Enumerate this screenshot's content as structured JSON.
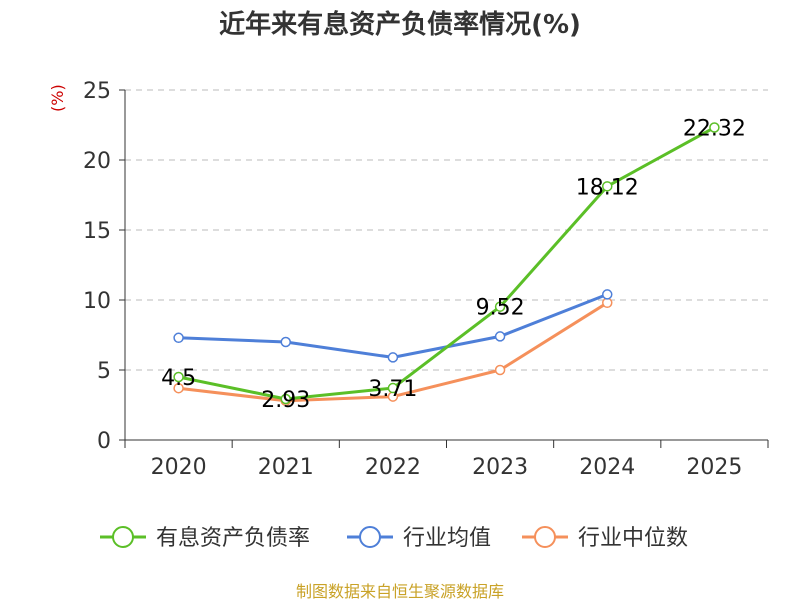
{
  "chart_data": {
    "type": "line",
    "title": "近年来有息资产负债率情况(%)",
    "ylabel": "(%)",
    "categories": [
      "2020",
      "2021",
      "2022",
      "2023",
      "2024",
      "2025"
    ],
    "ylim": [
      0,
      25
    ],
    "yticks": [
      0,
      5,
      10,
      15,
      20,
      25
    ],
    "grid": true,
    "legend_position": "bottom",
    "series": [
      {
        "name": "有息资产负债率",
        "color": "#5bbf27",
        "values": [
          4.5,
          2.93,
          3.71,
          9.52,
          18.12,
          22.32
        ],
        "labels": [
          "4.5",
          "2.93",
          "3.71",
          "9.52",
          "18.12",
          "22.32"
        ]
      },
      {
        "name": "行业均值",
        "color": "#4e7fd8",
        "values": [
          7.3,
          7.0,
          5.9,
          7.4,
          10.4,
          null
        ]
      },
      {
        "name": "行业中位数",
        "color": "#f5905b",
        "values": [
          3.7,
          2.8,
          3.1,
          5.0,
          9.8,
          null
        ]
      }
    ]
  },
  "source": "制图数据来自恒生聚源数据库"
}
